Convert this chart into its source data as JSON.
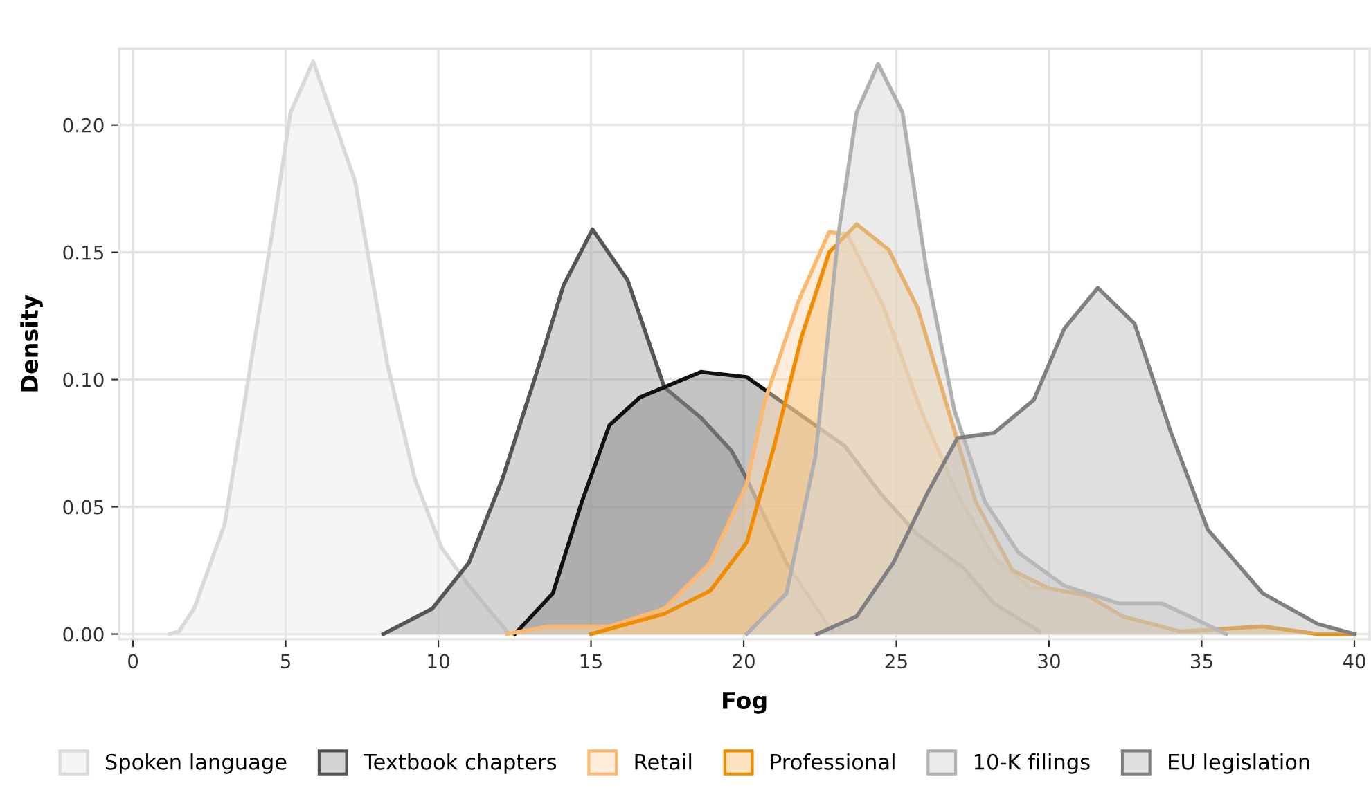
{
  "chart_data": {
    "type": "area",
    "xlabel": "Fog",
    "ylabel": "Density",
    "xlim": [
      -0.45,
      40.5
    ],
    "ylim": [
      -0.002,
      0.23
    ],
    "xticks": [
      0,
      5,
      10,
      15,
      20,
      25,
      30,
      35,
      40
    ],
    "yticks": [
      {
        "value": 0,
        "label": "0.00"
      },
      {
        "value": 0.05,
        "label": "0.05"
      },
      {
        "value": 0.1,
        "label": "0.10"
      },
      {
        "value": 0.15,
        "label": "0.15"
      },
      {
        "value": 0.2,
        "label": "0.20"
      }
    ],
    "grid": true,
    "legend": "bottom",
    "series": [
      {
        "name": "Spoken language",
        "color": "#d9d9d9",
        "x": [
          1.2,
          1.5,
          2.0,
          3.0,
          3.8,
          4.55,
          5.16,
          5.9,
          7.27,
          8.33,
          9.23,
          10.1,
          11.0,
          12.25
        ],
        "values": [
          0,
          0.001,
          0.01,
          0.043,
          0.102,
          0.157,
          0.205,
          0.225,
          0.178,
          0.106,
          0.061,
          0.034,
          0.019,
          0.001
        ]
      },
      {
        "name": "Textbook chapters",
        "color": "#555555",
        "x": [
          8.2,
          9.8,
          11.0,
          12.1,
          13.2,
          14.1,
          15.05,
          16.2,
          17.4,
          18.6,
          19.6,
          20.1,
          21.4,
          22.9
        ],
        "values": [
          0,
          0.01,
          0.028,
          0.061,
          0.102,
          0.137,
          0.159,
          0.139,
          0.097,
          0.085,
          0.072,
          0.061,
          0.028,
          0.001
        ]
      },
      {
        "color": "#111111",
        "x": [
          12.5,
          13.75,
          14.7,
          15.6,
          16.6,
          18.6,
          20.1,
          21.4,
          23.3,
          24.5,
          25.7,
          27.2,
          28.2,
          29.7
        ],
        "values": [
          0,
          0.016,
          0.052,
          0.082,
          0.093,
          0.103,
          0.101,
          0.09,
          0.074,
          0.055,
          0.039,
          0.026,
          0.012,
          0.001
        ]
      },
      {
        "name": "Retail",
        "color": "#fbb870",
        "x": [
          12.25,
          13.6,
          15.6,
          17.4,
          18.9,
          20.1,
          20.7,
          21.8,
          22.8,
          23.4,
          24.6,
          25.8,
          27.0,
          28.2,
          29.4,
          30.0,
          31.3,
          32.4,
          34.3,
          37.0,
          38.8,
          40.0
        ],
        "values": [
          0,
          0.003,
          0.003,
          0.01,
          0.028,
          0.059,
          0.092,
          0.131,
          0.158,
          0.157,
          0.128,
          0.088,
          0.055,
          0.03,
          0.018,
          0.018,
          0.015,
          0.007,
          0.001,
          0.003,
          0,
          0
        ]
      },
      {
        "name": "Professional",
        "color": "#f08c00",
        "x": [
          15.0,
          17.4,
          18.9,
          20.1,
          21.0,
          21.9,
          22.8,
          23.7,
          24.75,
          25.7,
          26.7,
          27.6,
          28.8,
          30.0,
          31.3,
          32.4,
          34.3,
          37.0,
          38.8,
          40.0
        ],
        "values": [
          0,
          0.008,
          0.017,
          0.036,
          0.074,
          0.117,
          0.15,
          0.161,
          0.151,
          0.128,
          0.088,
          0.052,
          0.025,
          0.018,
          0.015,
          0.007,
          0.001,
          0.003,
          0,
          0
        ]
      },
      {
        "name": "10-K filings",
        "color": "#b0b0b0",
        "x": [
          20.1,
          21.4,
          22.35,
          23.1,
          23.7,
          24.4,
          25.2,
          26.0,
          26.9,
          27.9,
          29.0,
          30.5,
          32.3,
          33.7,
          34.6,
          35.8
        ],
        "values": [
          0,
          0.016,
          0.07,
          0.157,
          0.205,
          0.224,
          0.205,
          0.142,
          0.088,
          0.052,
          0.032,
          0.019,
          0.012,
          0.012,
          0.007,
          0
        ]
      },
      {
        "name": "EU legislation",
        "color": "#808080",
        "x": [
          22.4,
          23.7,
          24.9,
          26.0,
          27.0,
          28.2,
          29.5,
          30.5,
          31.6,
          32.8,
          34.0,
          35.2,
          37.0,
          38.8,
          40.0
        ],
        "values": [
          0,
          0.007,
          0.028,
          0.055,
          0.077,
          0.079,
          0.092,
          0.12,
          0.136,
          0.122,
          0.079,
          0.041,
          0.016,
          0.004,
          0
        ]
      }
    ]
  }
}
